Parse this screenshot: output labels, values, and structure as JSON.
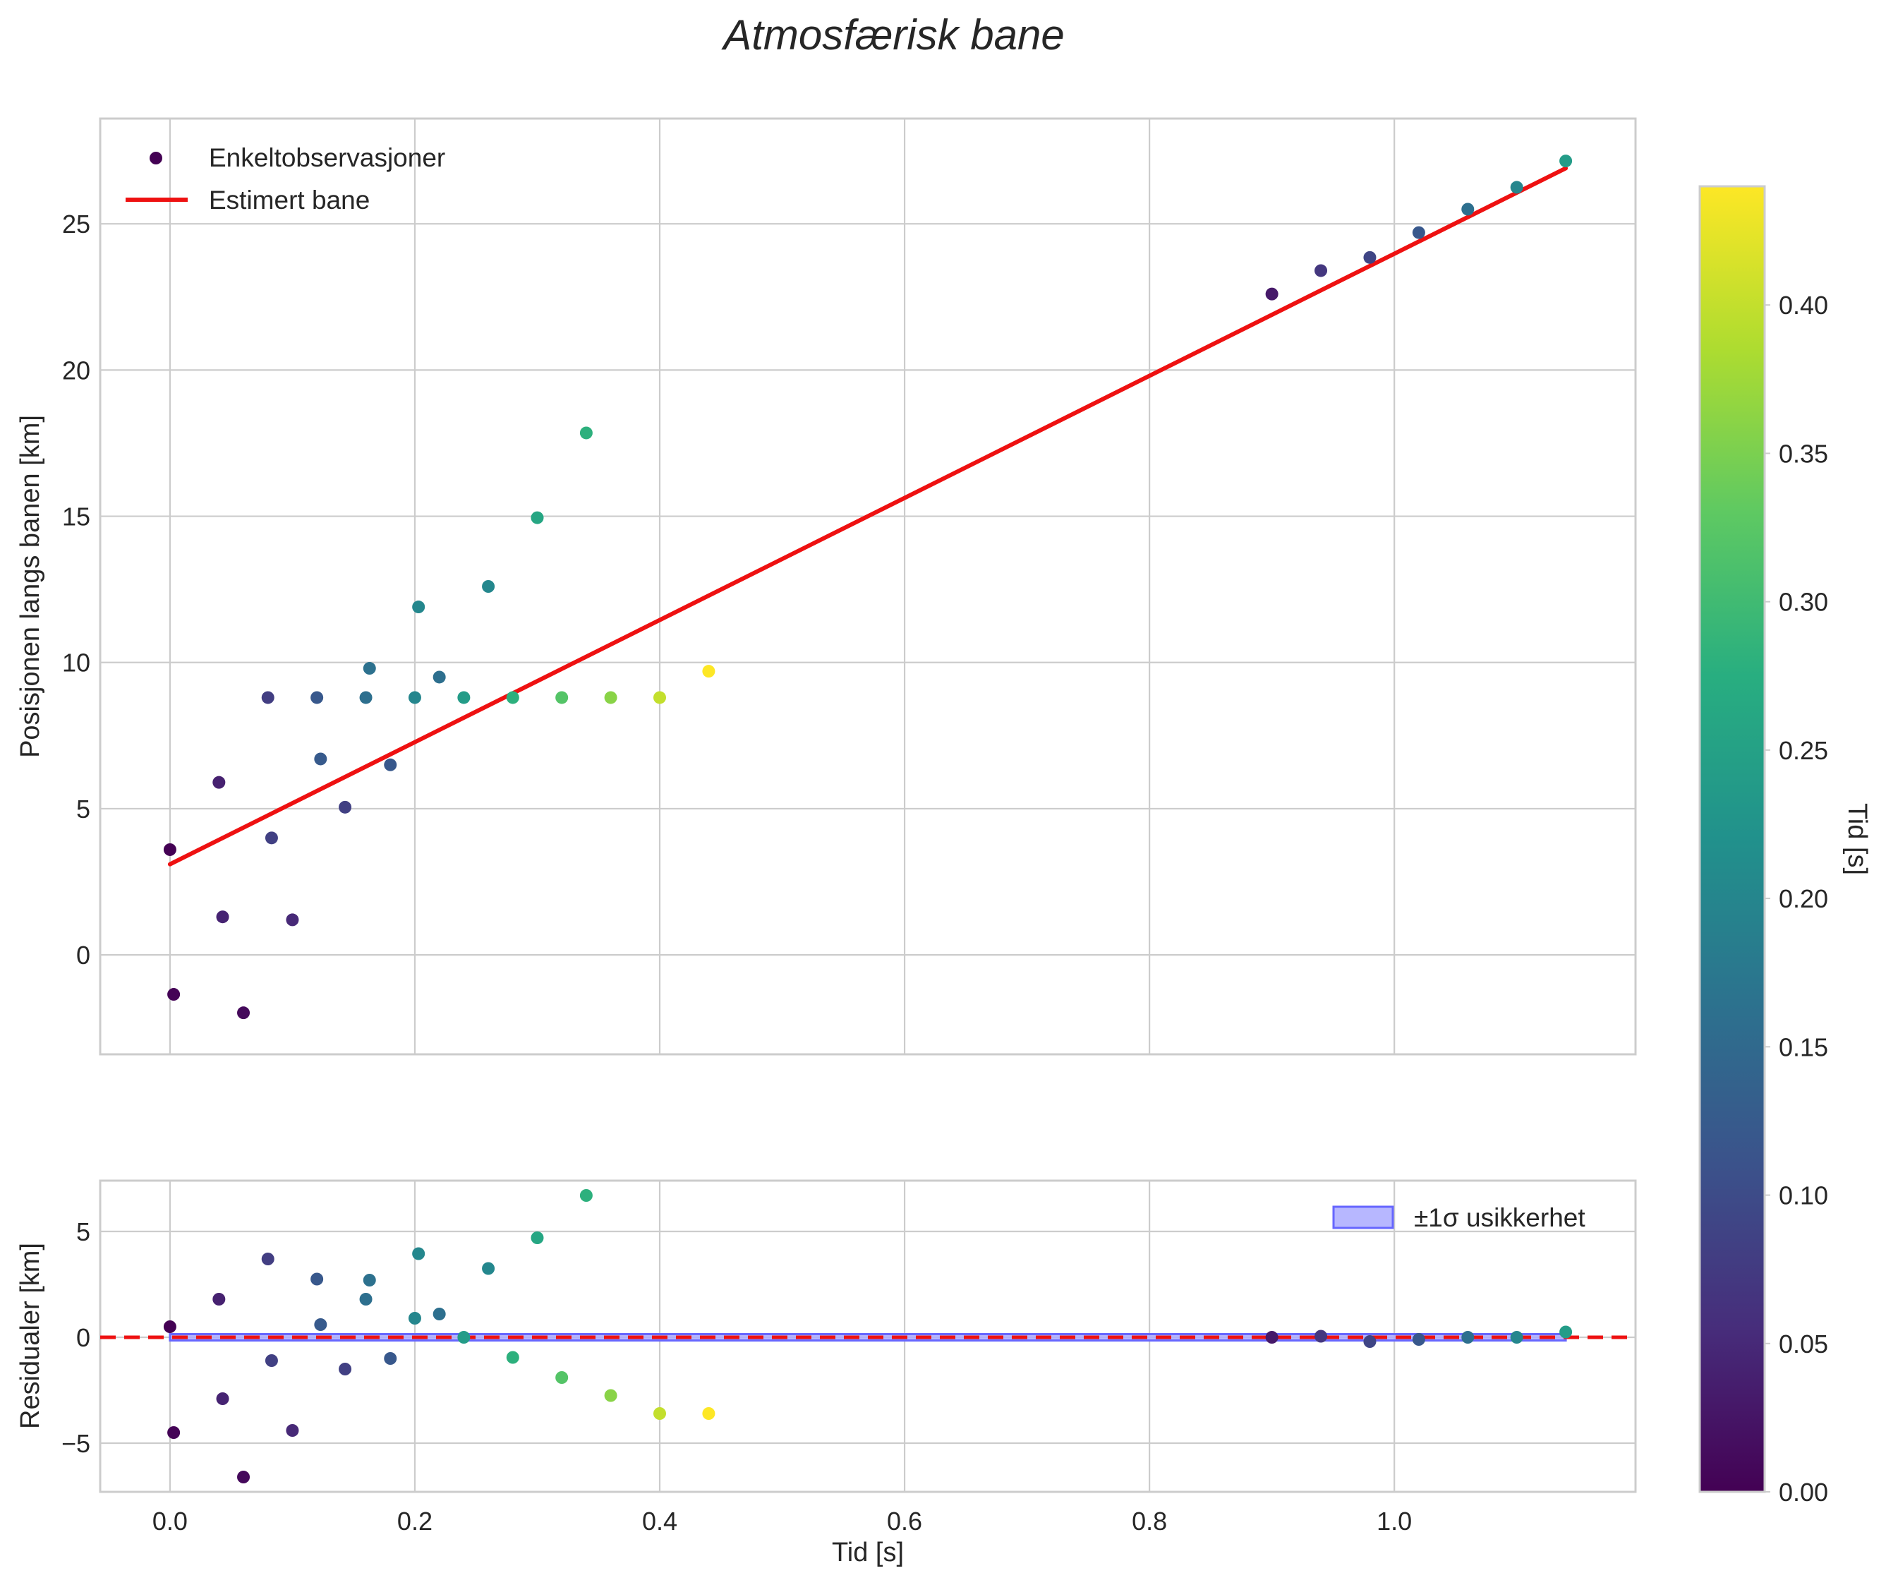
{
  "figure_title": "Atmosfærisk bane",
  "colors": {
    "fit_line": "#ee1111",
    "band_fill": "#aaaaff",
    "band_edge": "#6666ff",
    "grid": "#cccccc",
    "text": "#262626"
  },
  "chart_data": [
    {
      "type": "scatter",
      "panel": "top",
      "title": "Atmosfærisk bane",
      "xlabel": "",
      "ylabel": "Posisjonen langs banen [km]",
      "xlim": [
        -0.057,
        1.197
      ],
      "ylim": [
        -3.4,
        28.6
      ],
      "xticks": [
        0.0,
        0.2,
        0.4,
        0.6,
        0.8,
        1.0
      ],
      "yticks": [
        0,
        5,
        10,
        15,
        20,
        25
      ],
      "ytick_labels": [
        "0",
        "5",
        "10",
        "15",
        "20",
        "25"
      ],
      "grid": true,
      "legend_position": "top-left",
      "legend": [
        "Enkeltobservasjoner",
        "Estimert bane"
      ],
      "series": [
        {
          "name": "Enkeltobservasjoner",
          "kind": "scatter",
          "colormap": "viridis",
          "points": [
            {
              "x": 0.0,
              "y": 3.6,
              "c": 0.0
            },
            {
              "x": 0.003,
              "y": -1.35,
              "c": 0.003
            },
            {
              "x": 0.04,
              "y": 5.9,
              "c": 0.04
            },
            {
              "x": 0.043,
              "y": 1.3,
              "c": 0.043
            },
            {
              "x": 0.06,
              "y": -1.98,
              "c": 0.01
            },
            {
              "x": 0.08,
              "y": 8.8,
              "c": 0.08
            },
            {
              "x": 0.083,
              "y": 4.0,
              "c": 0.083
            },
            {
              "x": 0.1,
              "y": 1.2,
              "c": 0.05
            },
            {
              "x": 0.12,
              "y": 8.8,
              "c": 0.12
            },
            {
              "x": 0.123,
              "y": 6.7,
              "c": 0.123
            },
            {
              "x": 0.143,
              "y": 5.05,
              "c": 0.083
            },
            {
              "x": 0.16,
              "y": 8.8,
              "c": 0.16
            },
            {
              "x": 0.163,
              "y": 9.8,
              "c": 0.163
            },
            {
              "x": 0.18,
              "y": 6.5,
              "c": 0.12
            },
            {
              "x": 0.2,
              "y": 8.8,
              "c": 0.2
            },
            {
              "x": 0.203,
              "y": 11.9,
              "c": 0.203
            },
            {
              "x": 0.22,
              "y": 9.5,
              "c": 0.16
            },
            {
              "x": 0.24,
              "y": 8.8,
              "c": 0.24
            },
            {
              "x": 0.26,
              "y": 12.6,
              "c": 0.203
            },
            {
              "x": 0.28,
              "y": 8.8,
              "c": 0.28
            },
            {
              "x": 0.3,
              "y": 14.95,
              "c": 0.26
            },
            {
              "x": 0.32,
              "y": 8.8,
              "c": 0.32
            },
            {
              "x": 0.34,
              "y": 17.85,
              "c": 0.28
            },
            {
              "x": 0.36,
              "y": 8.8,
              "c": 0.36
            },
            {
              "x": 0.4,
              "y": 8.8,
              "c": 0.4
            },
            {
              "x": 0.44,
              "y": 9.7,
              "c": 0.44
            },
            {
              "x": 0.9,
              "y": 22.6,
              "c": 0.03
            },
            {
              "x": 0.94,
              "y": 23.4,
              "c": 0.07
            },
            {
              "x": 0.98,
              "y": 23.85,
              "c": 0.09
            },
            {
              "x": 1.02,
              "y": 24.7,
              "c": 0.12
            },
            {
              "x": 1.06,
              "y": 25.5,
              "c": 0.16
            },
            {
              "x": 1.1,
              "y": 26.25,
              "c": 0.2
            },
            {
              "x": 1.14,
              "y": 27.15,
              "c": 0.24
            }
          ]
        },
        {
          "name": "Estimert bane",
          "kind": "line",
          "x": [
            0.0,
            1.14
          ],
          "y": [
            3.1,
            26.9
          ]
        }
      ]
    },
    {
      "type": "scatter",
      "panel": "bottom",
      "xlabel": "Tid [s]",
      "ylabel": "Residualer [km]",
      "xlim": [
        -0.057,
        1.197
      ],
      "ylim": [
        -7.3,
        7.4
      ],
      "xticks": [
        0.0,
        0.2,
        0.4,
        0.6,
        0.8,
        1.0
      ],
      "xtick_labels": [
        "0.0",
        "0.2",
        "0.4",
        "0.6",
        "0.8",
        "1.0"
      ],
      "yticks": [
        -5,
        0,
        5
      ],
      "ytick_labels": [
        "−5",
        "0",
        "5"
      ],
      "grid": true,
      "legend_position": "top-right",
      "legend": [
        "±1σ usikkerhet"
      ],
      "zero_line": 0,
      "band": {
        "name": "±1σ usikkerhet",
        "x": [
          0.0,
          1.14
        ],
        "y_low": -0.15,
        "y_high": 0.15
      },
      "series": [
        {
          "name": "Residualer",
          "kind": "scatter",
          "colormap": "viridis",
          "points": [
            {
              "x": 0.0,
              "y": 0.5,
              "c": 0.0
            },
            {
              "x": 0.003,
              "y": -4.5,
              "c": 0.003
            },
            {
              "x": 0.04,
              "y": 1.8,
              "c": 0.04
            },
            {
              "x": 0.043,
              "y": -2.9,
              "c": 0.043
            },
            {
              "x": 0.06,
              "y": -6.6,
              "c": 0.01
            },
            {
              "x": 0.08,
              "y": 3.7,
              "c": 0.08
            },
            {
              "x": 0.083,
              "y": -1.1,
              "c": 0.083
            },
            {
              "x": 0.1,
              "y": -4.4,
              "c": 0.05
            },
            {
              "x": 0.12,
              "y": 2.75,
              "c": 0.12
            },
            {
              "x": 0.123,
              "y": 0.6,
              "c": 0.123
            },
            {
              "x": 0.143,
              "y": -1.5,
              "c": 0.083
            },
            {
              "x": 0.16,
              "y": 1.8,
              "c": 0.16
            },
            {
              "x": 0.163,
              "y": 2.7,
              "c": 0.163
            },
            {
              "x": 0.18,
              "y": -1.0,
              "c": 0.12
            },
            {
              "x": 0.2,
              "y": 0.9,
              "c": 0.2
            },
            {
              "x": 0.203,
              "y": 3.95,
              "c": 0.203
            },
            {
              "x": 0.22,
              "y": 1.1,
              "c": 0.16
            },
            {
              "x": 0.24,
              "y": 0.0,
              "c": 0.24
            },
            {
              "x": 0.26,
              "y": 3.25,
              "c": 0.203
            },
            {
              "x": 0.28,
              "y": -0.95,
              "c": 0.28
            },
            {
              "x": 0.3,
              "y": 4.7,
              "c": 0.26
            },
            {
              "x": 0.32,
              "y": -1.9,
              "c": 0.32
            },
            {
              "x": 0.34,
              "y": 6.7,
              "c": 0.28
            },
            {
              "x": 0.36,
              "y": -2.75,
              "c": 0.36
            },
            {
              "x": 0.4,
              "y": -3.6,
              "c": 0.4
            },
            {
              "x": 0.44,
              "y": -3.6,
              "c": 0.44
            },
            {
              "x": 0.9,
              "y": 0.0,
              "c": 0.03
            },
            {
              "x": 0.94,
              "y": 0.05,
              "c": 0.07
            },
            {
              "x": 0.98,
              "y": -0.2,
              "c": 0.09
            },
            {
              "x": 1.02,
              "y": -0.1,
              "c": 0.12
            },
            {
              "x": 1.06,
              "y": 0.0,
              "c": 0.16
            },
            {
              "x": 1.1,
              "y": 0.0,
              "c": 0.2
            },
            {
              "x": 1.14,
              "y": 0.25,
              "c": 0.24
            }
          ]
        }
      ]
    },
    {
      "type": "colorbar",
      "label": "Tid [s]",
      "colormap": "viridis",
      "range": [
        0.0,
        0.44
      ],
      "ticks": [
        0.0,
        0.05,
        0.1,
        0.15,
        0.2,
        0.25,
        0.3,
        0.35,
        0.4
      ],
      "tick_labels": [
        "0.00",
        "0.05",
        "0.10",
        "0.15",
        "0.20",
        "0.25",
        "0.30",
        "0.35",
        "0.40"
      ]
    }
  ]
}
